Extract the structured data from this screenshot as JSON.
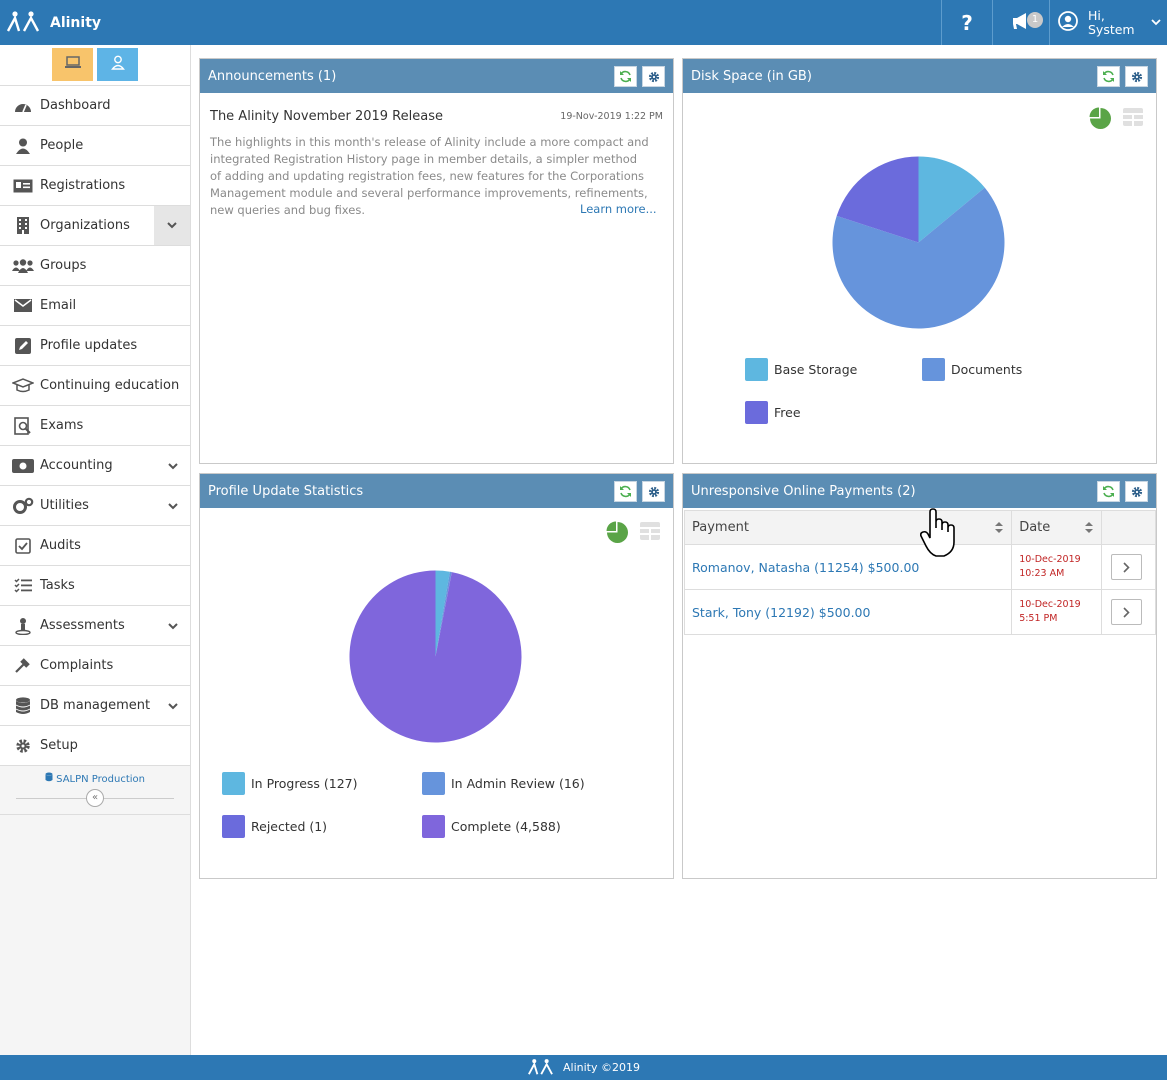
{
  "header": {
    "brand": "Alinity",
    "help_label": "?",
    "notifications_count": "1",
    "user_greeting_line1": "Hi,",
    "user_greeting_line2": "System"
  },
  "sidebar": {
    "items": [
      {
        "label": "Dashboard",
        "icon": "dashboard-icon"
      },
      {
        "label": "People",
        "icon": "person-icon"
      },
      {
        "label": "Registrations",
        "icon": "id-card-icon"
      },
      {
        "label": "Organizations",
        "icon": "building-icon",
        "expandable": true
      },
      {
        "label": "Groups",
        "icon": "users-icon"
      },
      {
        "label": "Email",
        "icon": "envelope-icon"
      },
      {
        "label": "Profile updates",
        "icon": "edit-icon"
      },
      {
        "label": "Continuing education",
        "icon": "graduation-cap-icon"
      },
      {
        "label": "Exams",
        "icon": "exam-icon"
      },
      {
        "label": "Accounting",
        "icon": "money-icon",
        "expandable": true
      },
      {
        "label": "Utilities",
        "icon": "cogs-icon",
        "expandable": true
      },
      {
        "label": "Audits",
        "icon": "checkbox-icon"
      },
      {
        "label": "Tasks",
        "icon": "tasks-icon"
      },
      {
        "label": "Assessments",
        "icon": "assessment-icon",
        "expandable": true
      },
      {
        "label": "Complaints",
        "icon": "gavel-icon"
      },
      {
        "label": "DB management",
        "icon": "database-icon",
        "expandable": true
      },
      {
        "label": "Setup",
        "icon": "gear-icon"
      }
    ],
    "environment_label": "SALPN Production"
  },
  "announcements": {
    "title": "Announcements (1)",
    "item_title": "The Alinity November 2019 Release",
    "item_date": "19-Nov-2019 1:22 PM",
    "item_body": "The highlights in this month's release of Alinity include a more compact and integrated Registration History page in member details, a simpler method of adding and updating registration fees, new features for the Corporations Management module and several performance improvements, refinements, new queries and bug fixes.",
    "learn_more": "Learn more..."
  },
  "disk_space": {
    "title": "Disk Space (in GB)",
    "legend": [
      {
        "label": "Base Storage",
        "color": "#5eb7e0"
      },
      {
        "label": "Documents",
        "color": "#6694dc"
      },
      {
        "label": "Free",
        "color": "#6b6bdc"
      }
    ]
  },
  "profile_stats": {
    "title": "Profile Update Statistics",
    "legend": [
      {
        "label": "In Progress (127)",
        "color": "#5eb7e0"
      },
      {
        "label": "In Admin Review (16)",
        "color": "#6694dc"
      },
      {
        "label": "Rejected (1)",
        "color": "#6b6bdc"
      },
      {
        "label": "Complete (4,588)",
        "color": "#7f66dc"
      }
    ]
  },
  "payments": {
    "title": "Unresponsive Online Payments (2)",
    "columns": [
      "Payment",
      "Date"
    ],
    "rows": [
      {
        "payment": "Romanov, Natasha (11254) $500.00",
        "date_line1": "10-Dec-2019",
        "date_line2": "10:23 AM"
      },
      {
        "payment": "Stark, Tony (12192) $500.00",
        "date_line1": "10-Dec-2019",
        "date_line2": "5:51 PM"
      }
    ]
  },
  "footer": {
    "text": "Alinity ©2019"
  },
  "chart_data": [
    {
      "type": "pie",
      "title": "Disk Space (in GB)",
      "categories": [
        "Base Storage",
        "Documents",
        "Free"
      ],
      "values": [
        14,
        66,
        20
      ]
    },
    {
      "type": "pie",
      "title": "Profile Update Statistics",
      "categories": [
        "In Progress",
        "In Admin Review",
        "Rejected",
        "Complete"
      ],
      "values": [
        127,
        16,
        1,
        4588
      ]
    }
  ]
}
